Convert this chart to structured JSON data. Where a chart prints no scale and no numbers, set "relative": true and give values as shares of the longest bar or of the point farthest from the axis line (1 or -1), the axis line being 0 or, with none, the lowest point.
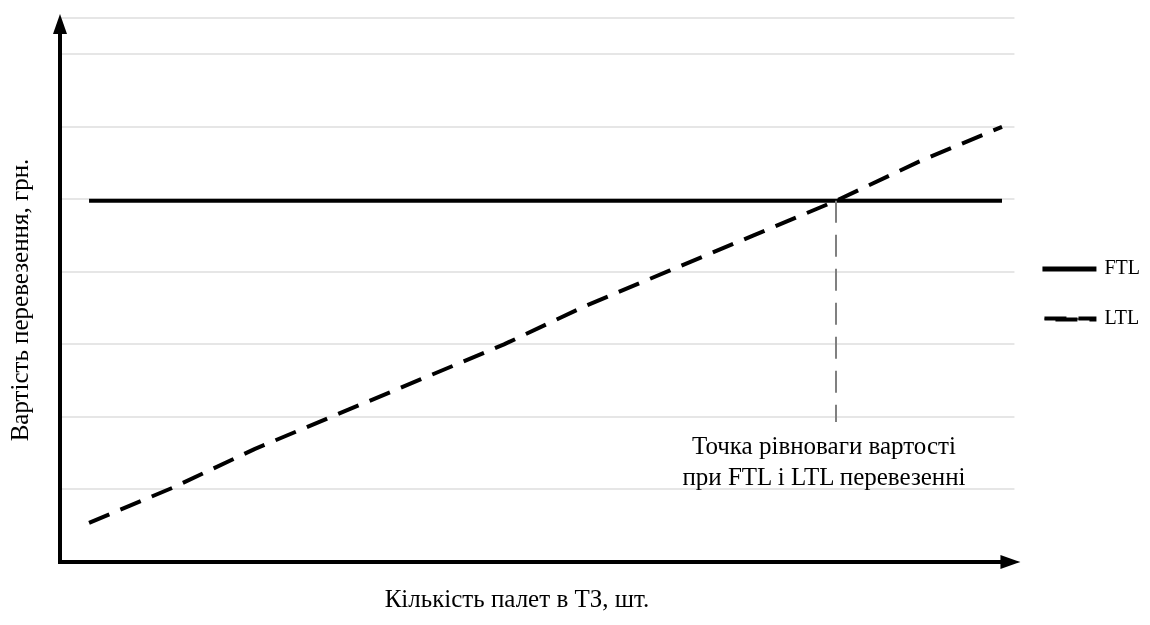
{
  "chart_data": {
    "type": "line",
    "relative": true,
    "xlabel": "Кількість палет в ТЗ, шт.",
    "ylabel": "Вартість перевезення, грн.",
    "categories": [
      null,
      null,
      null,
      null,
      null,
      null,
      null,
      null,
      null,
      null,
      null,
      null
    ],
    "series": [
      {
        "name": "FTL",
        "color": "#000000",
        "line_style": "solid",
        "values": [
          0.83,
          0.83,
          0.83,
          0.83,
          0.83,
          0.83,
          0.83,
          0.83,
          0.83,
          0.83,
          0.83,
          0.83
        ]
      },
      {
        "name": "LTL",
        "color": "#000000",
        "line_style": "dashed",
        "values": [
          0.09,
          0.17,
          0.26,
          0.34,
          0.42,
          0.5,
          0.59,
          0.67,
          0.75,
          0.83,
          0.92,
          1
        ]
      }
    ],
    "annotations": [
      "Точка рівноваги вартості\nпри FTL і LTL перевезенні"
    ],
    "grid": "y",
    "legend": "right",
    "marker": "none"
  }
}
